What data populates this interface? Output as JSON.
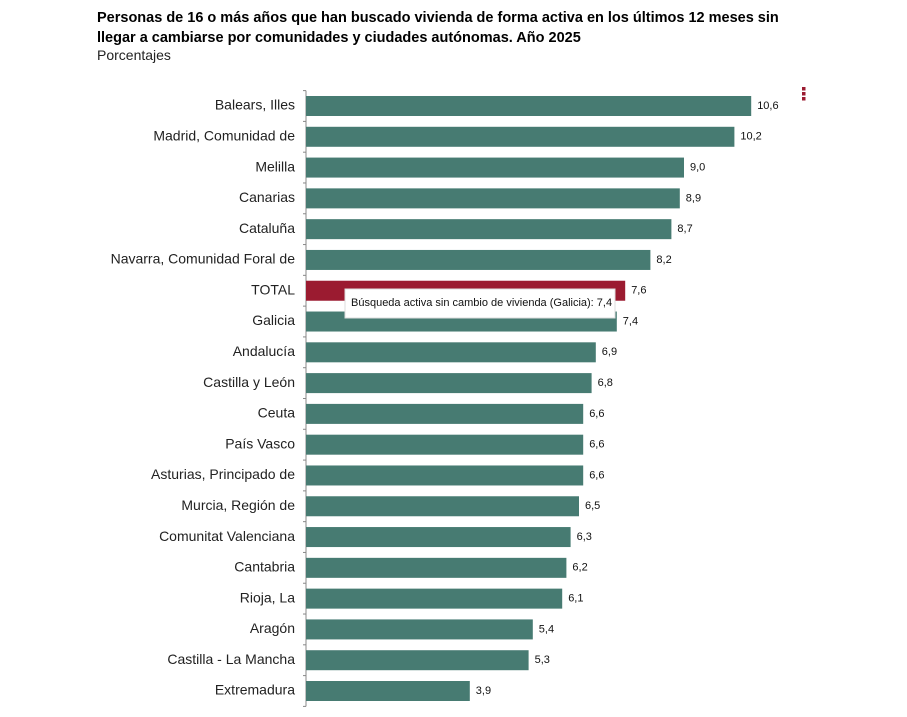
{
  "chart_data": {
    "type": "bar",
    "orientation": "horizontal",
    "title": "Personas de 16 o más años que han buscado vivienda de forma activa en los últimos 12 meses sin llegar a cambiarse por comunidades y ciudades autónomas. Año 2025",
    "subtitle": "Porcentajes",
    "categories": [
      "Balears, Illes",
      "Madrid, Comunidad de",
      "Melilla",
      "Canarias",
      "Cataluña",
      "Navarra, Comunidad Foral de",
      "TOTAL",
      "Galicia",
      "Andalucía",
      "Castilla y León",
      "Ceuta",
      "País Vasco",
      "Asturias, Principado de",
      "Murcia, Región de",
      "Comunitat Valenciana",
      "Cantabria",
      "Rioja, La",
      "Aragón",
      "Castilla - La Mancha",
      "Extremadura"
    ],
    "values": [
      10.6,
      10.2,
      9.0,
      8.9,
      8.7,
      8.2,
      7.6,
      7.4,
      6.9,
      6.8,
      6.6,
      6.6,
      6.6,
      6.5,
      6.3,
      6.2,
      6.1,
      5.4,
      5.3,
      3.9
    ],
    "value_labels": [
      "10,6",
      "10,2",
      "9,0",
      "8,9",
      "8,7",
      "8,2",
      "7,6",
      "7,4",
      "6,9",
      "6,8",
      "6,6",
      "6,6",
      "6,6",
      "6,5",
      "6,3",
      "6,2",
      "6,1",
      "5,4",
      "5,3",
      "3,9"
    ],
    "colors": [
      "#477b72",
      "#477b72",
      "#477b72",
      "#477b72",
      "#477b72",
      "#477b72",
      "#9b1b30",
      "#477b72",
      "#477b72",
      "#477b72",
      "#477b72",
      "#477b72",
      "#477b72",
      "#477b72",
      "#477b72",
      "#477b72",
      "#477b72",
      "#477b72",
      "#477b72",
      "#477b72"
    ],
    "xlim": [
      0,
      12
    ],
    "tooltip": "Búsqueda activa sin cambio de vivienda (Galicia): 7,4"
  }
}
